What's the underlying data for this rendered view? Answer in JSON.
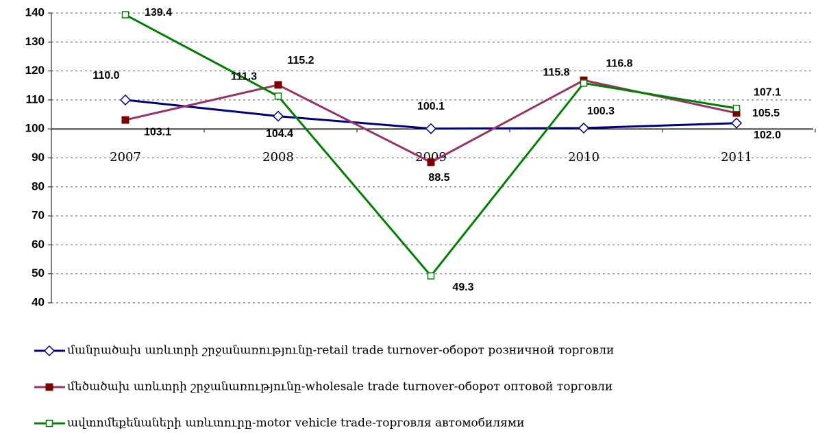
{
  "chart_data": {
    "type": "line",
    "categories": [
      "2007",
      "2008",
      "2009",
      "2010",
      "2011"
    ],
    "series": [
      {
        "name": "մանրածախ առևտրի շրջանառությունը-retail trade turnover-оборот розничной торговли",
        "color": "#000080",
        "marker": "open-diamond",
        "values": [
          110.0,
          104.4,
          100.1,
          100.3,
          102.0
        ],
        "value_labels": [
          "110.0",
          "104.4",
          "100.1",
          "100.3",
          "102.0"
        ]
      },
      {
        "name": "մեծածախ  առևտրի շրջանառությունը-wholesale trade turnover-оборот оптовой торговли",
        "color": "#993366",
        "marker_color": "#800000",
        "marker": "filled-square",
        "values": [
          103.1,
          115.2,
          88.5,
          116.8,
          105.5
        ],
        "value_labels": [
          "103.1",
          "115.2",
          "88.5",
          "116.8",
          "105.5"
        ]
      },
      {
        "name": "ավտոմեքենաների առևտուրը-motor vehicle trade-торговля автомобилями",
        "color": "#008000",
        "marker": "open-square",
        "values": [
          139.4,
          111.3,
          49.3,
          115.8,
          107.1
        ],
        "value_labels": [
          "139.4",
          "111.3",
          "49.3",
          "115.8",
          "107.1"
        ]
      }
    ],
    "ylim": [
      40,
      140
    ],
    "yticks": [
      40,
      50,
      60,
      70,
      80,
      90,
      100,
      110,
      120,
      130,
      140
    ],
    "x_axis_crosses": 100,
    "grid": true,
    "legend": "bottom"
  }
}
